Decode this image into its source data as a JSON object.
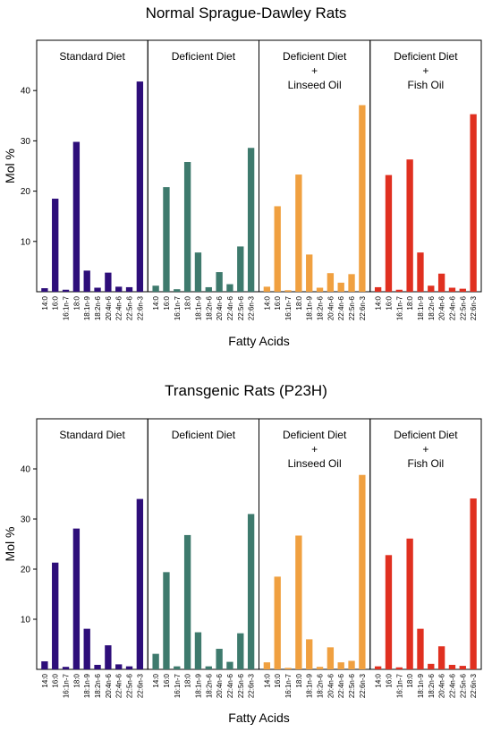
{
  "chart_data": [
    {
      "type": "bar",
      "title": "Normal Sprague-Dawley Rats",
      "xlabel": "Fatty Acids",
      "ylabel": "Mol %",
      "yticks": [
        10,
        20,
        30,
        40
      ],
      "ylim": [
        0,
        50
      ],
      "categories": [
        "14:0",
        "16:0",
        "16:1n-7",
        "18:0",
        "18:1n-9",
        "18:2n-6",
        "20:4n-6",
        "22:4n-6",
        "22:5n-6",
        "22:6n-3"
      ],
      "series": [
        {
          "name": "Standard Diet",
          "title_lines": [
            "Standard Diet"
          ],
          "color": "#2e0e7a",
          "values": [
            0.7,
            18.5,
            0.4,
            29.8,
            4.2,
            0.8,
            3.8,
            1.0,
            0.9,
            41.8
          ]
        },
        {
          "name": "Deficient Diet",
          "title_lines": [
            "Deficient Diet"
          ],
          "color": "#3e7a6d",
          "values": [
            1.2,
            20.8,
            0.5,
            25.8,
            7.8,
            0.9,
            3.9,
            1.5,
            9.0,
            28.6
          ]
        },
        {
          "name": "Deficient Diet + Linseed Oil",
          "title_lines": [
            "Deficient Diet",
            "+",
            "Linseed Oil"
          ],
          "color": "#f0a040",
          "values": [
            1.0,
            17.0,
            0.3,
            23.3,
            7.4,
            0.8,
            3.7,
            1.8,
            3.5,
            37.1
          ]
        },
        {
          "name": "Deficient Diet + Fish Oil",
          "title_lines": [
            "Deficient Diet",
            "+",
            "Fish Oil"
          ],
          "color": "#e03020",
          "values": [
            0.9,
            23.2,
            0.4,
            26.3,
            7.8,
            1.2,
            3.6,
            0.8,
            0.6,
            35.3
          ]
        }
      ]
    },
    {
      "type": "bar",
      "title": "Transgenic Rats (P23H)",
      "xlabel": "Fatty Acids",
      "ylabel": "Mol %",
      "yticks": [
        10,
        20,
        30,
        40
      ],
      "ylim": [
        0,
        50
      ],
      "categories": [
        "14:0",
        "16:0",
        "16:1n-7",
        "18:0",
        "18:1n-9",
        "18:2n-6",
        "20:4n-6",
        "22:4n-6",
        "22:5n-6",
        "22:6n-3"
      ],
      "series": [
        {
          "name": "Standard Diet",
          "title_lines": [
            "Standard Diet"
          ],
          "color": "#2e0e7a",
          "values": [
            1.6,
            21.3,
            0.5,
            28.1,
            8.1,
            0.9,
            4.8,
            1.0,
            0.6,
            34.0
          ]
        },
        {
          "name": "Deficient Diet",
          "title_lines": [
            "Deficient Diet"
          ],
          "color": "#3e7a6d",
          "values": [
            3.1,
            19.4,
            0.6,
            26.8,
            7.4,
            0.6,
            4.1,
            1.5,
            7.2,
            31.0
          ]
        },
        {
          "name": "Deficient Diet + Linseed Oil",
          "title_lines": [
            "Deficient Diet",
            "+",
            "Linseed Oil"
          ],
          "color": "#f0a040",
          "values": [
            1.4,
            18.5,
            0.3,
            26.7,
            6.0,
            0.5,
            4.4,
            1.4,
            1.7,
            38.8
          ]
        },
        {
          "name": "Deficient Diet + Fish Oil",
          "title_lines": [
            "Deficient Diet",
            "+",
            "Fish Oil"
          ],
          "color": "#e03020",
          "values": [
            0.6,
            22.8,
            0.4,
            26.1,
            8.1,
            1.1,
            4.6,
            0.9,
            0.7,
            34.1
          ]
        }
      ]
    }
  ]
}
